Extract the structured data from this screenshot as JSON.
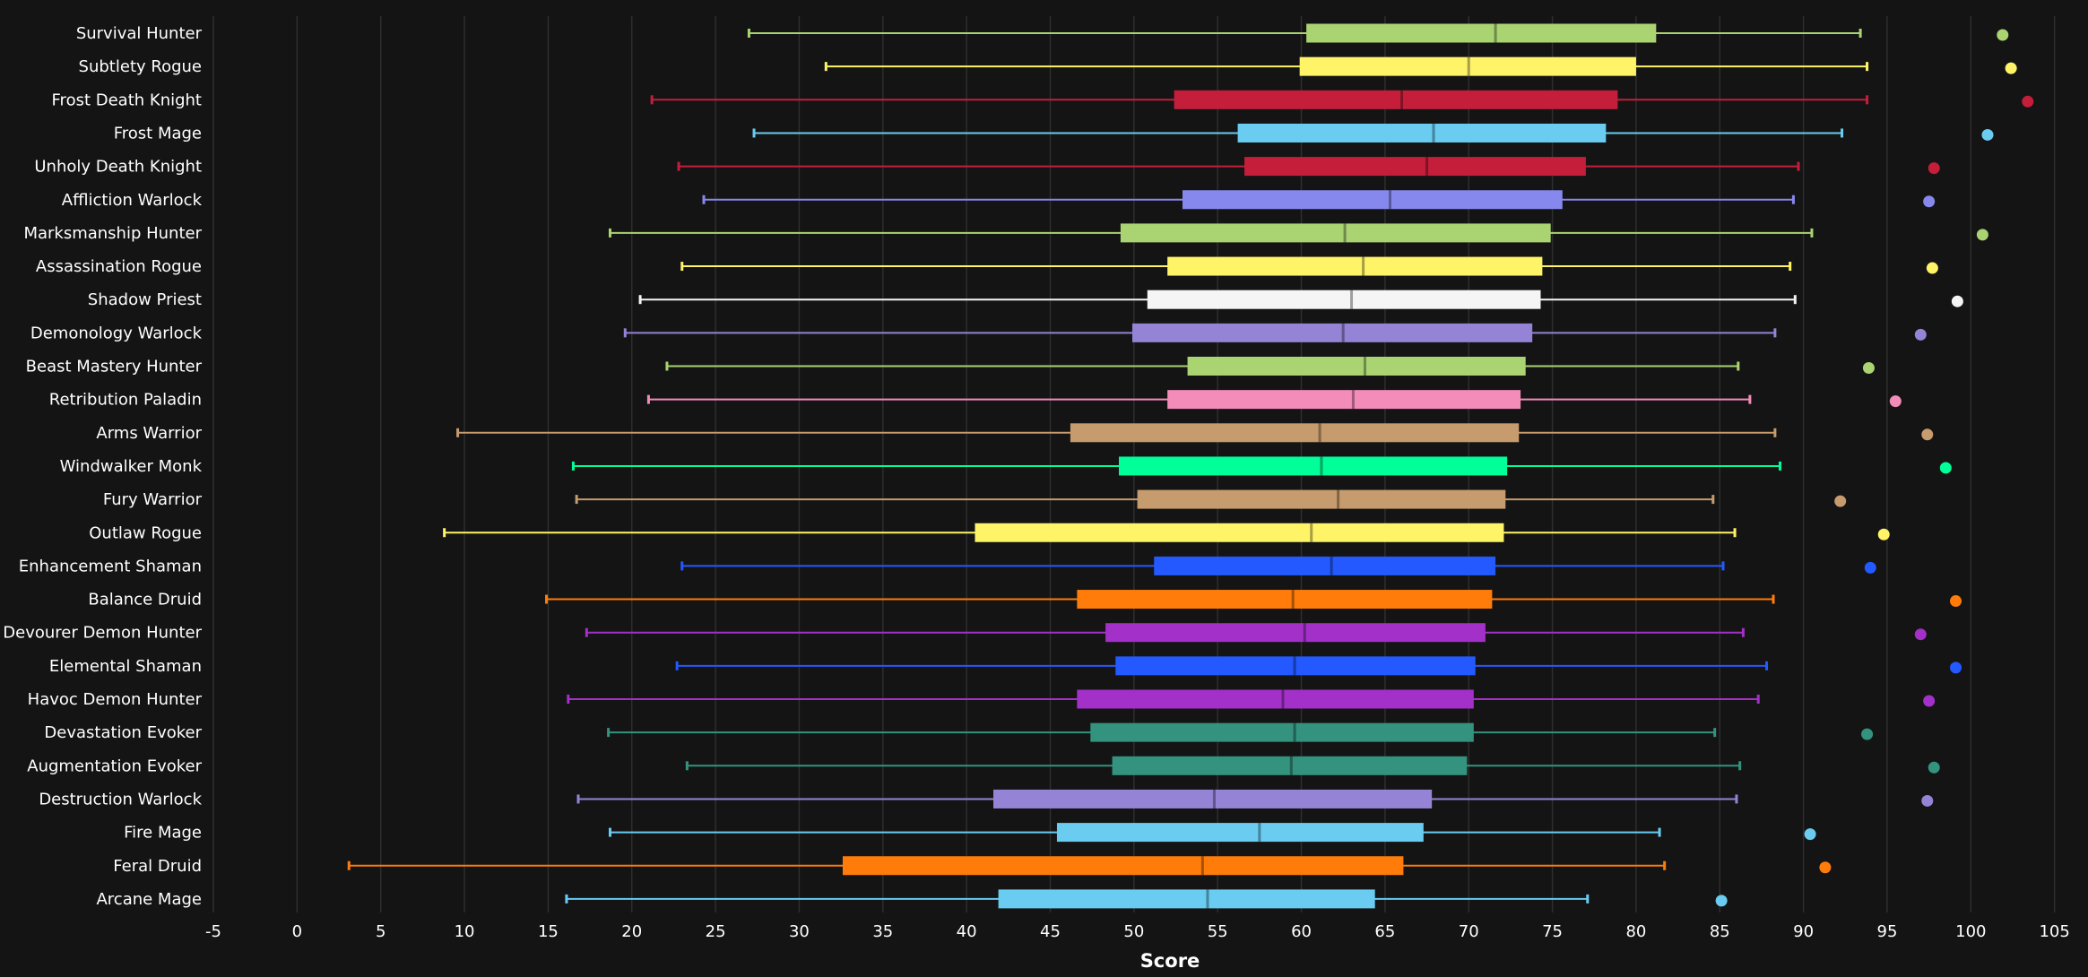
{
  "chart_data": {
    "type": "boxplot",
    "title": "",
    "xlabel": "Score",
    "ylabel": "",
    "xlim": [
      -5,
      107
    ],
    "xticks": [
      -5,
      0,
      5,
      10,
      15,
      20,
      25,
      30,
      35,
      40,
      45,
      50,
      55,
      60,
      65,
      70,
      75,
      80,
      85,
      90,
      95,
      100,
      105
    ],
    "grid": "vertical",
    "legend": "none",
    "background": "#141414",
    "series": [
      {
        "name": "Survival Hunter",
        "color": "#aad372",
        "min": 27.0,
        "q1": 60.3,
        "median": 71.6,
        "q3": 81.2,
        "max": 93.4,
        "outlier": 101.9
      },
      {
        "name": "Subtlety Rogue",
        "color": "#fff468",
        "min": 31.6,
        "q1": 59.9,
        "median": 70.0,
        "q3": 80.0,
        "max": 93.8,
        "outlier": 102.4
      },
      {
        "name": "Frost Death Knight",
        "color": "#c41e3a",
        "min": 21.2,
        "q1": 52.4,
        "median": 66.0,
        "q3": 78.9,
        "max": 93.8,
        "outlier": 103.4
      },
      {
        "name": "Frost Mage",
        "color": "#69ccf0",
        "min": 27.3,
        "q1": 56.2,
        "median": 67.9,
        "q3": 78.2,
        "max": 92.3,
        "outlier": 101.0
      },
      {
        "name": "Unholy Death Knight",
        "color": "#c41e3a",
        "min": 22.8,
        "q1": 56.6,
        "median": 67.5,
        "q3": 77.0,
        "max": 89.7,
        "outlier": 97.8
      },
      {
        "name": "Affliction Warlock",
        "color": "#8788ee",
        "min": 24.3,
        "q1": 52.9,
        "median": 65.3,
        "q3": 75.6,
        "max": 89.4,
        "outlier": 97.5
      },
      {
        "name": "Marksmanship Hunter",
        "color": "#aad372",
        "min": 18.7,
        "q1": 49.2,
        "median": 62.6,
        "q3": 74.9,
        "max": 90.5,
        "outlier": 100.7
      },
      {
        "name": "Assassination Rogue",
        "color": "#fff468",
        "min": 23.0,
        "q1": 52.0,
        "median": 63.7,
        "q3": 74.4,
        "max": 89.2,
        "outlier": 97.7
      },
      {
        "name": "Shadow Priest",
        "color": "#f5f5f5",
        "min": 20.5,
        "q1": 50.8,
        "median": 63.0,
        "q3": 74.3,
        "max": 89.5,
        "outlier": 99.2
      },
      {
        "name": "Demonology Warlock",
        "color": "#9583d6",
        "min": 19.6,
        "q1": 49.9,
        "median": 62.5,
        "q3": 73.8,
        "max": 88.3,
        "outlier": 97.0
      },
      {
        "name": "Beast Mastery Hunter",
        "color": "#aad372",
        "min": 22.1,
        "q1": 53.2,
        "median": 63.8,
        "q3": 73.4,
        "max": 86.1,
        "outlier": 93.9
      },
      {
        "name": "Retribution Paladin",
        "color": "#f48cba",
        "min": 21.0,
        "q1": 52.0,
        "median": 63.1,
        "q3": 73.1,
        "max": 86.8,
        "outlier": 95.5
      },
      {
        "name": "Arms Warrior",
        "color": "#c69b6d",
        "min": 9.6,
        "q1": 46.2,
        "median": 61.1,
        "q3": 73.0,
        "max": 88.3,
        "outlier": 97.4
      },
      {
        "name": "Windwalker Monk",
        "color": "#00ff98",
        "min": 16.5,
        "q1": 49.1,
        "median": 61.2,
        "q3": 72.3,
        "max": 88.6,
        "outlier": 98.5
      },
      {
        "name": "Fury Warrior",
        "color": "#c69b6d",
        "min": 16.7,
        "q1": 50.2,
        "median": 62.2,
        "q3": 72.2,
        "max": 84.6,
        "outlier": 92.2
      },
      {
        "name": "Outlaw Rogue",
        "color": "#fff468",
        "min": 8.8,
        "q1": 40.5,
        "median": 60.6,
        "q3": 72.1,
        "max": 85.9,
        "outlier": 94.8
      },
      {
        "name": "Enhancement Shaman",
        "color": "#2359ff",
        "min": 23.0,
        "q1": 51.2,
        "median": 61.8,
        "q3": 71.6,
        "max": 85.2,
        "outlier": 94.0
      },
      {
        "name": "Balance Druid",
        "color": "#ff7c0a",
        "min": 14.9,
        "q1": 46.6,
        "median": 59.5,
        "q3": 71.4,
        "max": 88.2,
        "outlier": 99.1
      },
      {
        "name": "Devourer Demon Hunter",
        "color": "#a330c9",
        "min": 17.3,
        "q1": 48.3,
        "median": 60.2,
        "q3": 71.0,
        "max": 86.4,
        "outlier": 97.0
      },
      {
        "name": "Elemental Shaman",
        "color": "#2359ff",
        "min": 22.7,
        "q1": 48.9,
        "median": 59.6,
        "q3": 70.4,
        "max": 87.8,
        "outlier": 99.1
      },
      {
        "name": "Havoc Demon Hunter",
        "color": "#a330c9",
        "min": 16.2,
        "q1": 46.6,
        "median": 58.9,
        "q3": 70.3,
        "max": 87.3,
        "outlier": 97.5
      },
      {
        "name": "Devastation Evoker",
        "color": "#33937f",
        "min": 18.6,
        "q1": 47.4,
        "median": 59.6,
        "q3": 70.3,
        "max": 84.7,
        "outlier": 93.8
      },
      {
        "name": "Augmentation Evoker",
        "color": "#33937f",
        "min": 23.3,
        "q1": 48.7,
        "median": 59.4,
        "q3": 69.9,
        "max": 86.2,
        "outlier": 97.8
      },
      {
        "name": "Destruction Warlock",
        "color": "#9583d6",
        "min": 16.8,
        "q1": 41.6,
        "median": 54.8,
        "q3": 67.8,
        "max": 86.0,
        "outlier": 97.4
      },
      {
        "name": "Fire Mage",
        "color": "#69ccf0",
        "min": 18.7,
        "q1": 45.4,
        "median": 57.5,
        "q3": 67.3,
        "max": 81.4,
        "outlier": 90.4
      },
      {
        "name": "Feral Druid",
        "color": "#ff7c0a",
        "min": 3.1,
        "q1": 32.6,
        "median": 54.1,
        "q3": 66.1,
        "max": 81.7,
        "outlier": 91.3
      },
      {
        "name": "Arcane Mage",
        "color": "#69ccf0",
        "min": 16.1,
        "q1": 41.9,
        "median": 54.4,
        "q3": 64.4,
        "max": 77.1,
        "outlier": 85.1
      }
    ]
  }
}
